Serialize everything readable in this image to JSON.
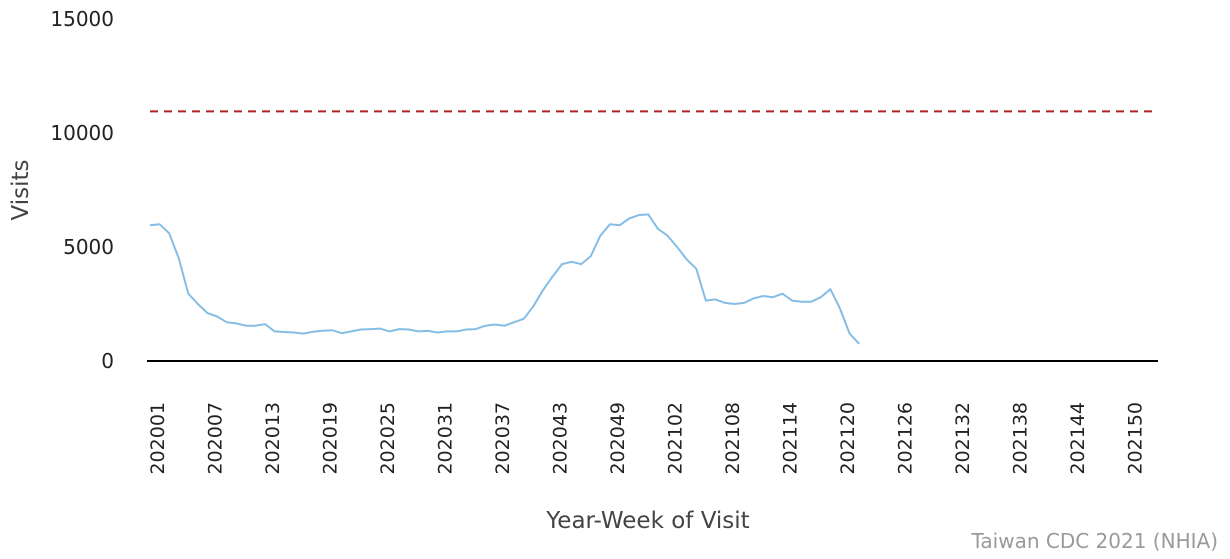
{
  "chart_data": {
    "type": "line",
    "xlabel": "Year-Week of Visit",
    "ylabel": "Visits",
    "ylim": [
      0,
      15000
    ],
    "y_ticks": [
      "15000",
      "10000",
      "5000",
      "0"
    ],
    "x_ticks": [
      "202001",
      "202007",
      "202013",
      "202019",
      "202025",
      "202031",
      "202037",
      "202043",
      "202049",
      "202102",
      "202108",
      "202114",
      "202120",
      "202126",
      "202132",
      "202138",
      "202144",
      "202150"
    ],
    "threshold": {
      "value": 10950,
      "style": "dashed",
      "color": "#b22222"
    },
    "series": [
      {
        "color": "#85bde6",
        "values": [
          5950,
          6000,
          5600,
          4500,
          2950,
          2500,
          2100,
          1950,
          1700,
          1650,
          1550,
          1550,
          1620,
          1300,
          1270,
          1250,
          1200,
          1280,
          1330,
          1350,
          1220,
          1300,
          1380,
          1400,
          1420,
          1300,
          1400,
          1380,
          1300,
          1320,
          1250,
          1300,
          1300,
          1380,
          1400,
          1550,
          1600,
          1550,
          1700,
          1850,
          2400,
          3100,
          3700,
          4250,
          4350,
          4250,
          4600,
          5500,
          6000,
          5950,
          6250,
          6400,
          6430,
          5800,
          5500,
          5000,
          4450,
          4050,
          2650,
          2700,
          2550,
          2500,
          2550,
          2750,
          2850,
          2800,
          2950,
          2650,
          2600,
          2600,
          2800,
          3150,
          2300,
          1200,
          750
        ]
      }
    ]
  },
  "source_note": "Taiwan CDC 2021 (NHIA)"
}
